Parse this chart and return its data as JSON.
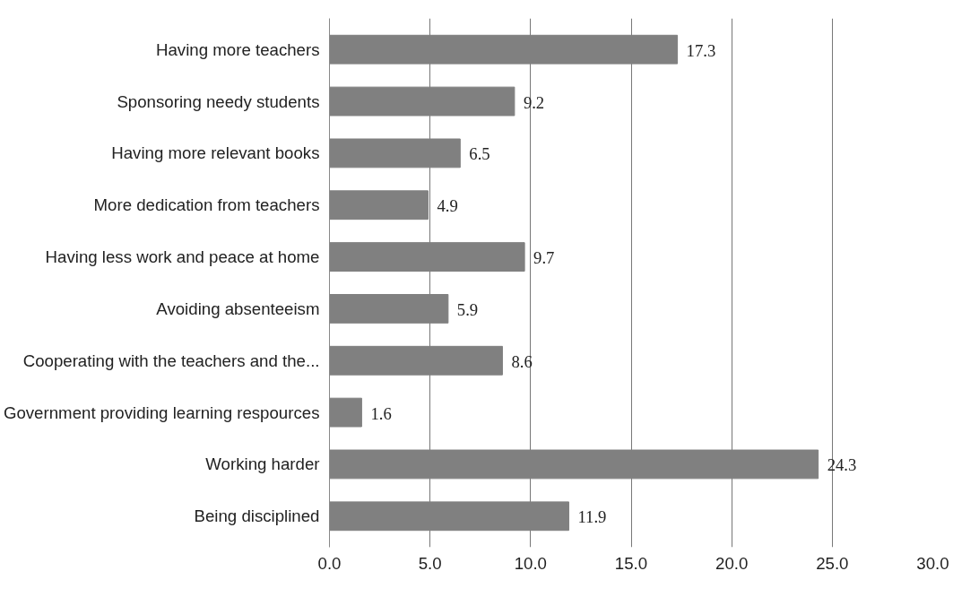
{
  "chart_data": {
    "type": "bar",
    "orientation": "horizontal",
    "categories": [
      "Having more teachers",
      "Sponsoring needy students",
      "Having more relevant books",
      "More dedication from teachers",
      "Having less work and peace at home",
      "Avoiding absenteeism",
      "Cooperating with the teachers and the...",
      "Government providing learning respources",
      "Working harder",
      "Being disciplined"
    ],
    "values": [
      17.3,
      9.2,
      6.5,
      4.9,
      9.7,
      5.9,
      8.6,
      1.6,
      24.3,
      11.9
    ],
    "color": "#808080",
    "xlim": [
      0,
      30
    ],
    "xticks": [
      {
        "value": 0,
        "label": "0.0"
      },
      {
        "value": 5,
        "label": "5.0"
      },
      {
        "value": 10,
        "label": "10.0"
      },
      {
        "value": 15,
        "label": "15.0"
      },
      {
        "value": 20,
        "label": "20.0"
      },
      {
        "value": 25,
        "label": "25.0"
      },
      {
        "value": 30,
        "label": "30.0"
      }
    ],
    "grid": "x",
    "data_labels": true
  }
}
